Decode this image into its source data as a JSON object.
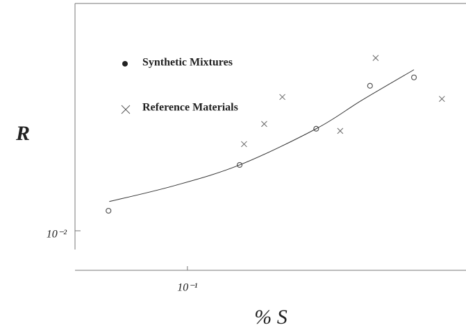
{
  "chart_data": {
    "type": "scatter",
    "x_label": "% S",
    "y_label": "R",
    "log_x": true,
    "log_y": true,
    "xlim": [
      0.043,
      0.81
    ],
    "ylim": [
      0.00605,
      0.18
    ],
    "xticks": [
      {
        "value": 0.1,
        "label": "10⁻¹"
      }
    ],
    "yticks": [
      {
        "value": 0.01,
        "label": "10⁻²"
      }
    ],
    "grid": false,
    "series": [
      {
        "name": "Synthetic Mixtures",
        "marker": "circle",
        "color": "#555555",
        "x": [
          0.0553,
          0.148,
          0.263,
          0.394,
          0.548
        ],
        "values": [
          0.0129,
          0.0231,
          0.0366,
          0.0632,
          0.0703
        ]
      },
      {
        "name": "Reference Materials",
        "marker": "cross",
        "color": "#666666",
        "x": [
          0.153,
          0.178,
          0.204,
          0.315,
          0.411,
          0.676
        ],
        "values": [
          0.0301,
          0.0389,
          0.0548,
          0.0356,
          0.09,
          0.0535
        ]
      },
      {
        "marker": "line",
        "color": "#333333",
        "x": [
          0.0556,
          0.0901,
          0.148,
          0.263,
          0.37,
          0.548
        ],
        "values": [
          0.0145,
          0.0177,
          0.0231,
          0.0366,
          0.0525,
          0.0775
        ]
      }
    ]
  }
}
